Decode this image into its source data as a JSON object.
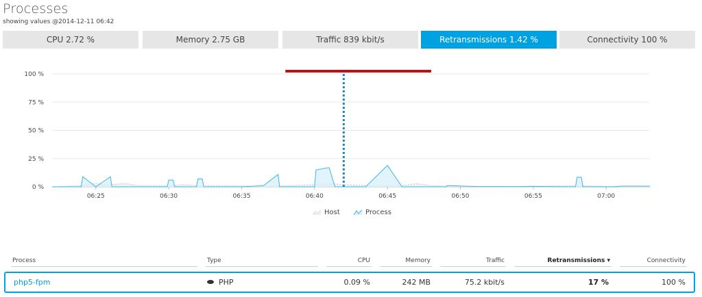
{
  "page": {
    "title": "Processes",
    "subtitle": "showing values @2014-12-11 06:42"
  },
  "tabs": [
    {
      "label": "CPU 2.72 %",
      "active": false
    },
    {
      "label": "Memory 2.75 GB",
      "active": false
    },
    {
      "label": "Traffic 839 kbit/s",
      "active": false
    },
    {
      "label": "Retransmissions 1.42 %",
      "active": true
    },
    {
      "label": "Connectivity 100 %",
      "active": false
    }
  ],
  "colors": {
    "accent": "#00a1e0",
    "tab_inactive": "#e6e6e6",
    "marker_bar": "#b0161c",
    "process_line": "#3fb4e8",
    "process_fill": "#d9f1fb",
    "host_line": "#c9c9c9"
  },
  "chart_data": {
    "type": "area",
    "y_ticks": [
      "100 %",
      "75 %",
      "50 %",
      "25 %",
      "0 %"
    ],
    "ylim": [
      0,
      100
    ],
    "x_ticks": [
      {
        "label": "06:25",
        "t": 25
      },
      {
        "label": "06:30",
        "t": 30
      },
      {
        "label": "06:35",
        "t": 35
      },
      {
        "label": "06:40",
        "t": 40
      },
      {
        "label": "06:45",
        "t": 45
      },
      {
        "label": "06:50",
        "t": 50
      },
      {
        "label": "06:55",
        "t": 55
      },
      {
        "label": "07:00",
        "t": 60
      }
    ],
    "xlim": [
      22,
      63
    ],
    "grid": true,
    "legend_position": "bottom-center",
    "series": [
      {
        "name": "Host",
        "style": "host",
        "points": [
          [
            22,
            0
          ],
          [
            24,
            1
          ],
          [
            25,
            3
          ],
          [
            26,
            2
          ],
          [
            27,
            3
          ],
          [
            28,
            1
          ],
          [
            30,
            1
          ],
          [
            31,
            2
          ],
          [
            32,
            1
          ],
          [
            34,
            1
          ],
          [
            36,
            0.5
          ],
          [
            38,
            1
          ],
          [
            40,
            2
          ],
          [
            41,
            3
          ],
          [
            42,
            2
          ],
          [
            44,
            1
          ],
          [
            46,
            1
          ],
          [
            47,
            3
          ],
          [
            48,
            1
          ],
          [
            50,
            0.5
          ],
          [
            54,
            0.3
          ],
          [
            58,
            1
          ],
          [
            60,
            0.5
          ],
          [
            63,
            0.3
          ]
        ]
      },
      {
        "name": "Process",
        "style": "process",
        "points": [
          [
            22,
            0
          ],
          [
            24,
            0
          ],
          [
            24.1,
            9
          ],
          [
            25,
            0
          ],
          [
            26,
            9
          ],
          [
            26.1,
            0
          ],
          [
            28,
            0
          ],
          [
            29.9,
            0
          ],
          [
            30,
            6
          ],
          [
            30.3,
            6
          ],
          [
            30.4,
            0
          ],
          [
            31.9,
            0
          ],
          [
            32,
            7
          ],
          [
            32.3,
            7
          ],
          [
            32.4,
            0
          ],
          [
            35,
            0
          ],
          [
            36.5,
            1
          ],
          [
            37.5,
            11
          ],
          [
            37.6,
            0
          ],
          [
            40,
            0
          ],
          [
            40.1,
            15
          ],
          [
            41,
            17
          ],
          [
            41.4,
            0
          ],
          [
            43.5,
            0
          ],
          [
            45,
            19
          ],
          [
            46,
            0
          ],
          [
            49,
            0
          ],
          [
            49.1,
            1
          ],
          [
            51,
            0.3
          ],
          [
            54,
            0.2
          ],
          [
            55,
            0.5
          ],
          [
            56,
            0.2
          ],
          [
            57.9,
            0
          ],
          [
            58,
            8.5
          ],
          [
            58.3,
            8.5
          ],
          [
            58.4,
            0
          ],
          [
            60.5,
            0
          ],
          [
            61,
            0.6
          ],
          [
            63,
            0.6
          ]
        ]
      }
    ],
    "marker_time": 42,
    "marker_range": [
      38,
      48
    ]
  },
  "table": {
    "columns": [
      {
        "key": "process",
        "label": "Process"
      },
      {
        "key": "type",
        "label": "Type"
      },
      {
        "key": "cpu",
        "label": "CPU"
      },
      {
        "key": "memory",
        "label": "Memory"
      },
      {
        "key": "traffic",
        "label": "Traffic"
      },
      {
        "key": "retransmissions",
        "label": "Retransmissions ▾"
      },
      {
        "key": "connectivity",
        "label": "Connectivity"
      }
    ],
    "rows": [
      {
        "process": "php5-fpm",
        "type": "PHP",
        "type_icon": "php-icon",
        "cpu": "0.09 %",
        "memory": "242 MB",
        "traffic": "75.2 kbit/s",
        "retransmissions": "17 %",
        "connectivity": "100 %"
      }
    ]
  }
}
